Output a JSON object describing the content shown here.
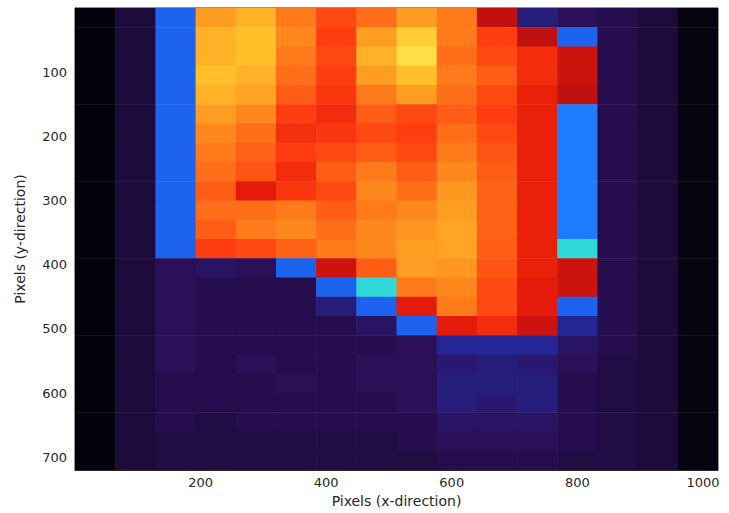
{
  "chart_data": {
    "type": "heatmap",
    "x_label": "Pixels (x-direction)",
    "y_label": "Pixels (y-direction)",
    "xlim": [
      0,
      1024
    ],
    "ylim": [
      720,
      0
    ],
    "xticks": [
      200,
      400,
      600,
      800,
      1000
    ],
    "yticks": [
      100,
      200,
      300,
      400,
      500,
      600,
      700
    ],
    "grid": false,
    "color_range": [
      0,
      1
    ],
    "x": [
      32,
      96,
      160,
      224,
      288,
      352,
      416,
      480,
      544,
      608,
      672,
      736,
      800,
      864,
      928,
      992
    ],
    "y": [
      15,
      45,
      75,
      105,
      135,
      165,
      195,
      225,
      255,
      285,
      315,
      345,
      375,
      405,
      435,
      465,
      495,
      525,
      555,
      585,
      615,
      645,
      675,
      705
    ],
    "z": [
      [
        0.03,
        0.12,
        0.3,
        0.85,
        0.88,
        0.8,
        0.72,
        0.78,
        0.85,
        0.8,
        0.45,
        0.18,
        0.15,
        0.14,
        0.12,
        0.04
      ],
      [
        0.03,
        0.12,
        0.3,
        0.88,
        0.9,
        0.82,
        0.7,
        0.85,
        0.92,
        0.8,
        0.7,
        0.45,
        0.3,
        0.14,
        0.12,
        0.04
      ],
      [
        0.03,
        0.12,
        0.3,
        0.88,
        0.9,
        0.8,
        0.72,
        0.88,
        0.95,
        0.78,
        0.72,
        0.65,
        0.5,
        0.14,
        0.12,
        0.04
      ],
      [
        0.03,
        0.12,
        0.3,
        0.9,
        0.88,
        0.78,
        0.7,
        0.85,
        0.9,
        0.8,
        0.75,
        0.65,
        0.5,
        0.14,
        0.12,
        0.04
      ],
      [
        0.03,
        0.12,
        0.3,
        0.88,
        0.86,
        0.75,
        0.68,
        0.8,
        0.85,
        0.78,
        0.72,
        0.62,
        0.45,
        0.14,
        0.12,
        0.04
      ],
      [
        0.03,
        0.12,
        0.3,
        0.85,
        0.82,
        0.7,
        0.65,
        0.75,
        0.72,
        0.75,
        0.7,
        0.62,
        0.33,
        0.14,
        0.12,
        0.04
      ],
      [
        0.03,
        0.12,
        0.3,
        0.82,
        0.78,
        0.66,
        0.68,
        0.72,
        0.7,
        0.78,
        0.72,
        0.62,
        0.33,
        0.14,
        0.12,
        0.04
      ],
      [
        0.03,
        0.12,
        0.3,
        0.8,
        0.76,
        0.7,
        0.72,
        0.75,
        0.72,
        0.8,
        0.74,
        0.62,
        0.33,
        0.14,
        0.12,
        0.04
      ],
      [
        0.03,
        0.12,
        0.3,
        0.78,
        0.74,
        0.65,
        0.75,
        0.8,
        0.75,
        0.82,
        0.75,
        0.62,
        0.33,
        0.14,
        0.12,
        0.04
      ],
      [
        0.03,
        0.12,
        0.3,
        0.75,
        0.6,
        0.68,
        0.72,
        0.82,
        0.78,
        0.84,
        0.76,
        0.62,
        0.33,
        0.14,
        0.12,
        0.04
      ],
      [
        0.03,
        0.12,
        0.3,
        0.78,
        0.78,
        0.8,
        0.75,
        0.8,
        0.82,
        0.85,
        0.76,
        0.62,
        0.33,
        0.14,
        0.12,
        0.04
      ],
      [
        0.03,
        0.12,
        0.3,
        0.75,
        0.8,
        0.82,
        0.78,
        0.82,
        0.84,
        0.86,
        0.76,
        0.62,
        0.33,
        0.14,
        0.12,
        0.04
      ],
      [
        0.03,
        0.12,
        0.3,
        0.7,
        0.72,
        0.76,
        0.8,
        0.82,
        0.85,
        0.86,
        0.75,
        0.62,
        0.4,
        0.14,
        0.12,
        0.04
      ],
      [
        0.03,
        0.12,
        0.15,
        0.16,
        0.15,
        0.3,
        0.5,
        0.75,
        0.85,
        0.84,
        0.74,
        0.62,
        0.5,
        0.14,
        0.12,
        0.04
      ],
      [
        0.03,
        0.12,
        0.15,
        0.14,
        0.14,
        0.14,
        0.3,
        0.4,
        0.8,
        0.82,
        0.72,
        0.6,
        0.5,
        0.14,
        0.12,
        0.04
      ],
      [
        0.03,
        0.12,
        0.15,
        0.14,
        0.14,
        0.14,
        0.18,
        0.3,
        0.6,
        0.8,
        0.72,
        0.6,
        0.3,
        0.14,
        0.12,
        0.04
      ],
      [
        0.03,
        0.12,
        0.15,
        0.14,
        0.14,
        0.14,
        0.14,
        0.16,
        0.3,
        0.6,
        0.65,
        0.5,
        0.2,
        0.14,
        0.12,
        0.04
      ],
      [
        0.03,
        0.12,
        0.15,
        0.14,
        0.14,
        0.14,
        0.14,
        0.14,
        0.15,
        0.2,
        0.2,
        0.2,
        0.16,
        0.14,
        0.12,
        0.04
      ],
      [
        0.03,
        0.12,
        0.15,
        0.14,
        0.15,
        0.14,
        0.14,
        0.15,
        0.15,
        0.17,
        0.18,
        0.17,
        0.15,
        0.13,
        0.12,
        0.04
      ],
      [
        0.03,
        0.12,
        0.14,
        0.14,
        0.14,
        0.15,
        0.14,
        0.15,
        0.15,
        0.18,
        0.18,
        0.18,
        0.14,
        0.13,
        0.12,
        0.04
      ],
      [
        0.03,
        0.12,
        0.14,
        0.14,
        0.14,
        0.14,
        0.14,
        0.14,
        0.15,
        0.18,
        0.17,
        0.18,
        0.14,
        0.13,
        0.12,
        0.04
      ],
      [
        0.03,
        0.12,
        0.14,
        0.13,
        0.14,
        0.14,
        0.14,
        0.14,
        0.14,
        0.16,
        0.16,
        0.16,
        0.14,
        0.13,
        0.12,
        0.04
      ],
      [
        0.03,
        0.12,
        0.13,
        0.13,
        0.13,
        0.13,
        0.13,
        0.13,
        0.14,
        0.15,
        0.15,
        0.15,
        0.14,
        0.13,
        0.12,
        0.04
      ],
      [
        0.03,
        0.12,
        0.13,
        0.13,
        0.13,
        0.13,
        0.13,
        0.13,
        0.13,
        0.14,
        0.14,
        0.14,
        0.13,
        0.13,
        0.12,
        0.04
      ]
    ]
  }
}
